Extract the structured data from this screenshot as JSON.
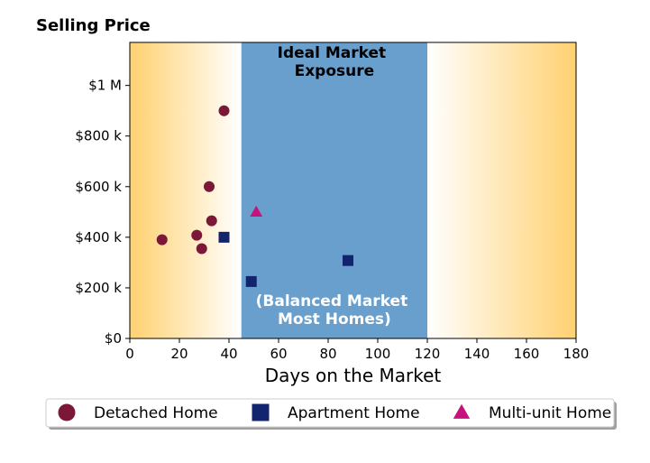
{
  "chart_data": {
    "type": "scatter",
    "ylabel": "Selling Price",
    "xlabel": "Days on the Market",
    "xlim": [
      0,
      180
    ],
    "ylim": [
      0,
      1170000
    ],
    "x_ticks": [
      0,
      20,
      40,
      60,
      80,
      100,
      120,
      140,
      160,
      180
    ],
    "x_tick_labels": [
      "0",
      "20",
      "40",
      "60",
      "80",
      "100",
      "120",
      "140",
      "160",
      "180"
    ],
    "y_ticks": [
      0,
      200000,
      400000,
      600000,
      800000,
      1000000
    ],
    "y_tick_labels": [
      "$0",
      "$200 k",
      "$400 k",
      "$600 k",
      "$800 k",
      "$1 M"
    ],
    "grid": false,
    "legend_position": "bottom",
    "highlight_band": {
      "x_range": [
        45,
        120
      ],
      "color": "#689FCC",
      "top_label_lines": [
        "Ideal Market",
        "Exposure"
      ],
      "bottom_label_lines": [
        "(Balanced Market",
        "Most Homes)"
      ]
    },
    "background_gradient": {
      "edge_color": "#FFD170",
      "center_color": "#FFFFFF"
    },
    "series": [
      {
        "name": "Detached Home",
        "marker": "circle",
        "color": "#7B1838",
        "points": [
          {
            "x": 13,
            "y": 390000
          },
          {
            "x": 27,
            "y": 408000
          },
          {
            "x": 29,
            "y": 355000
          },
          {
            "x": 32,
            "y": 600000
          },
          {
            "x": 33,
            "y": 465000
          },
          {
            "x": 38,
            "y": 900000
          }
        ]
      },
      {
        "name": "Apartment Home",
        "marker": "square",
        "color": "#13246E",
        "points": [
          {
            "x": 38,
            "y": 400000
          },
          {
            "x": 49,
            "y": 225000
          },
          {
            "x": 88,
            "y": 308000
          }
        ]
      },
      {
        "name": "Multi-unit Home",
        "marker": "triangle",
        "color": "#C4137A",
        "points": [
          {
            "x": 51,
            "y": 500000
          }
        ]
      }
    ]
  }
}
